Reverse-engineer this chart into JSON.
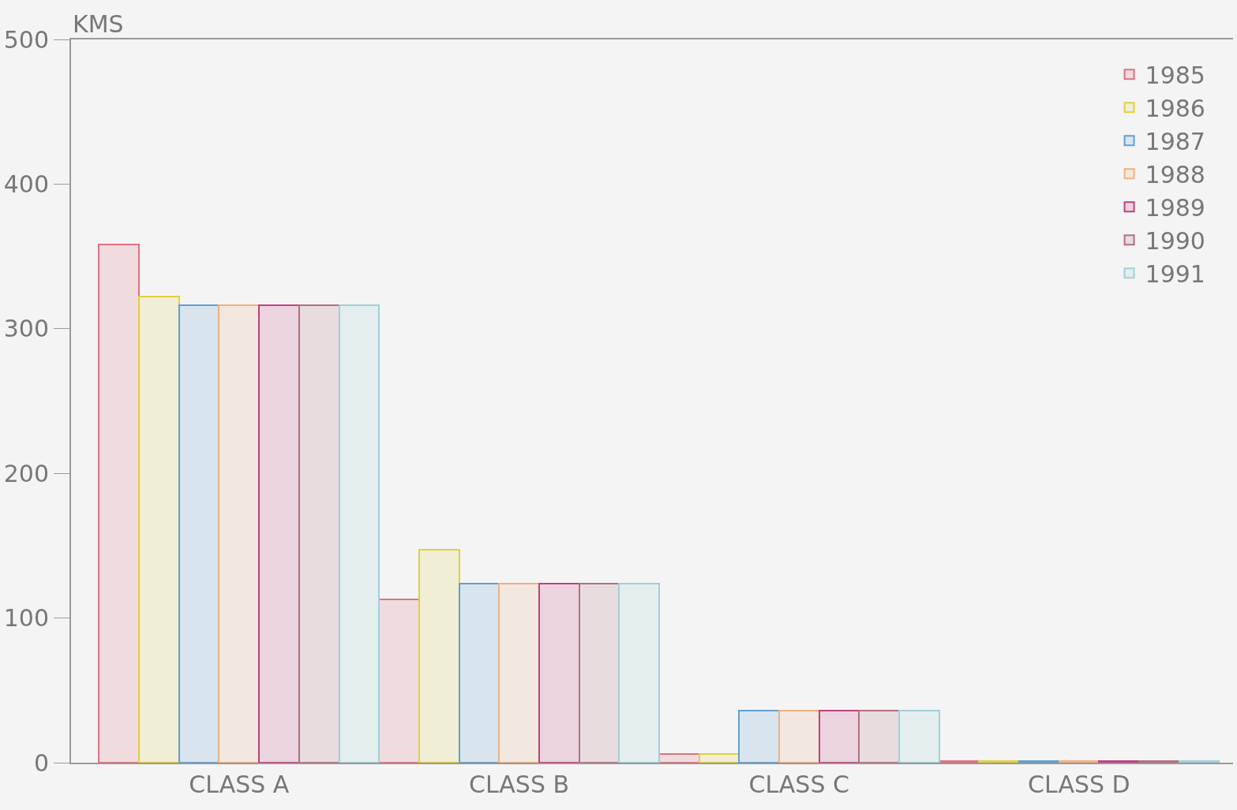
{
  "chart_data": {
    "type": "bar",
    "ylabel": "KMS",
    "categories": [
      "CLASS A",
      "CLASS B",
      "CLASS C",
      "CLASS D"
    ],
    "series": [
      {
        "name": "1985",
        "color": "#e07080",
        "values": [
          358,
          113,
          6,
          1
        ]
      },
      {
        "name": "1986",
        "color": "#e0d040",
        "values": [
          322,
          147,
          6,
          1
        ]
      },
      {
        "name": "1987",
        "color": "#60a0d0",
        "values": [
          316,
          124,
          36,
          1
        ]
      },
      {
        "name": "1988",
        "color": "#f0b080",
        "values": [
          316,
          124,
          36,
          1
        ]
      },
      {
        "name": "1989",
        "color": "#c04080",
        "values": [
          316,
          124,
          36,
          1
        ]
      },
      {
        "name": "1990",
        "color": "#b07080",
        "values": [
          316,
          124,
          36,
          1
        ]
      },
      {
        "name": "1991",
        "color": "#a0d0d8",
        "values": [
          316,
          124,
          36,
          1
        ]
      }
    ],
    "ylim": [
      0,
      500
    ],
    "yticks": [
      0,
      100,
      200,
      300,
      400,
      500
    ],
    "grid": false,
    "legend": "top right"
  }
}
